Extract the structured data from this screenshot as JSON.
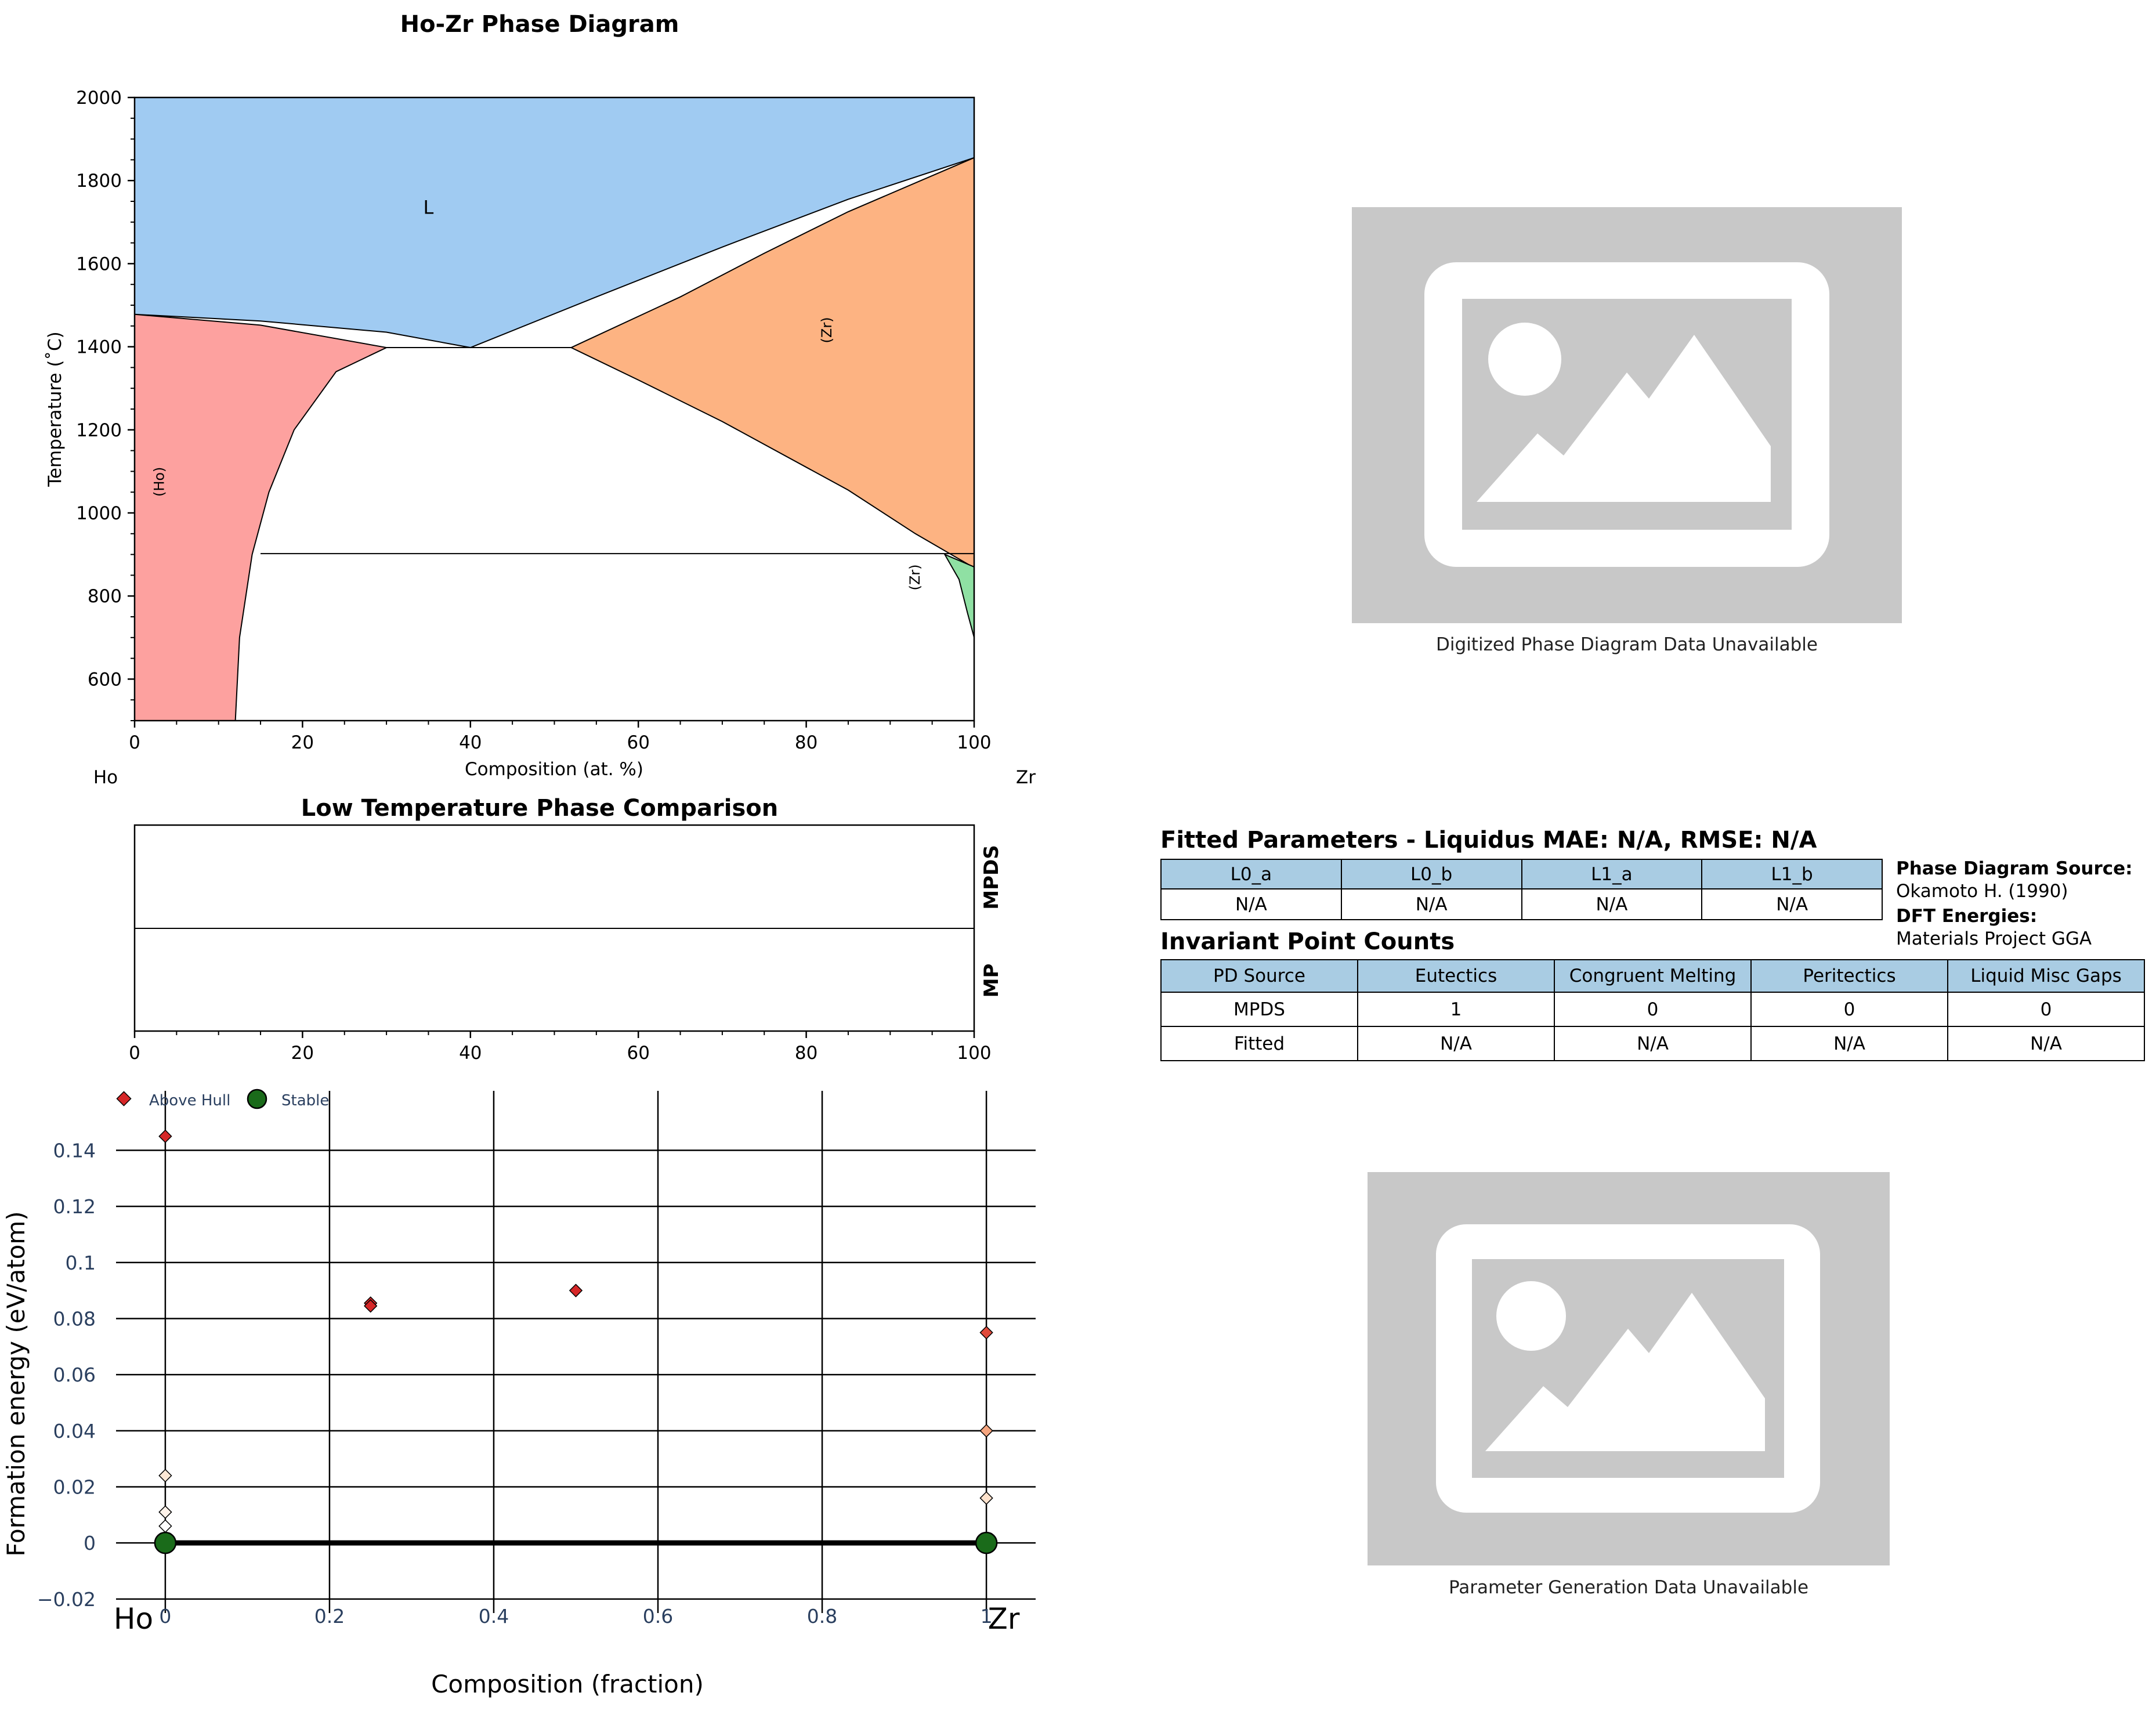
{
  "chart_data": [
    {
      "type": "area",
      "title": "Ho-Zr Phase Diagram",
      "xlabel": "Composition (at. %)",
      "ylabel": "Temperature (˚C)",
      "xlim": [
        0,
        100
      ],
      "ylim": [
        500,
        2000
      ],
      "xticks": [
        "0",
        "20",
        "40",
        "60",
        "80",
        "100"
      ],
      "yticks": [
        "600",
        "800",
        "1000",
        "1200",
        "1400",
        "1600",
        "1800",
        "2000"
      ],
      "element_left": "Ho",
      "element_right": "Zr",
      "phase_labels": [
        {
          "text": "L",
          "x": 35,
          "y": 1720
        },
        {
          "text": "(Zr)",
          "x": 83,
          "y": 1440
        },
        {
          "text": "(Ho)",
          "x": 3.5,
          "y": 1075
        },
        {
          "text": "(Zr)",
          "x": 93.5,
          "y": 845
        }
      ],
      "regions": [
        {
          "phase": "L",
          "color": "#a0cbf2",
          "points": [
            [
              0,
              2000
            ],
            [
              100,
              2000
            ],
            [
              100,
              1855
            ],
            [
              85,
              1755
            ],
            [
              70,
              1640
            ],
            [
              55,
              1520
            ],
            [
              40,
              1398
            ],
            [
              30,
              1435
            ],
            [
              15,
              1462
            ],
            [
              0,
              1478
            ]
          ]
        },
        {
          "phase": "(Ho)",
          "color": "#fda19f",
          "points": [
            [
              0,
              1478
            ],
            [
              15,
              1452
            ],
            [
              30,
              1398
            ],
            [
              24,
              1340
            ],
            [
              19,
              1200
            ],
            [
              16,
              1050
            ],
            [
              14,
              900
            ],
            [
              12.5,
              700
            ],
            [
              12,
              500
            ],
            [
              0,
              500
            ]
          ]
        },
        {
          "phase": "(Zr)",
          "color": "#fdb382",
          "points": [
            [
              52,
              1398
            ],
            [
              65,
              1520
            ],
            [
              75,
              1625
            ],
            [
              85,
              1725
            ],
            [
              100,
              1855
            ],
            [
              100,
              868
            ],
            [
              93,
              950
            ],
            [
              85,
              1055
            ],
            [
              70,
              1220
            ],
            [
              60,
              1320
            ]
          ]
        },
        {
          "phase": "(Zr) low",
          "color": "#8fe0a3",
          "points": [
            [
              96.5,
              900
            ],
            [
              100,
              870
            ],
            [
              100,
              700
            ],
            [
              99.2,
              760
            ],
            [
              98.2,
              840
            ]
          ]
        }
      ],
      "invariant_lines": [
        {
          "x1": 30,
          "x2": 52,
          "y": 1398
        },
        {
          "x1": 15,
          "x2": 100,
          "y": 902
        }
      ]
    },
    {
      "type": "bar",
      "title": "Low Temperature Phase Comparison",
      "rows": [
        "MPDS",
        "MP"
      ],
      "xlim": [
        0,
        100
      ],
      "xticks": [
        "0",
        "20",
        "40",
        "60",
        "80",
        "100"
      ]
    },
    {
      "type": "scatter",
      "xlabel": "Composition (fraction)",
      "ylabel": "Formation energy (eV/atom)",
      "xlim": [
        -0.06,
        1.06
      ],
      "ylim": [
        -0.025,
        0.155
      ],
      "xticks": [
        "0",
        "0.2",
        "0.4",
        "0.6",
        "0.8",
        "1"
      ],
      "yticks": [
        "−0.02",
        "0",
        "0.02",
        "0.04",
        "0.06",
        "0.08",
        "0.1",
        "0.12",
        "0.14"
      ],
      "element_left": "Ho",
      "element_right": "Zr",
      "legend": [
        "Above Hull",
        "Stable"
      ],
      "legend_position": "top-left",
      "hull_line": [
        [
          0,
          0
        ],
        [
          1,
          0
        ]
      ],
      "stable": [
        [
          0,
          0
        ],
        [
          1,
          0
        ]
      ],
      "above_hull": [
        {
          "x": 0,
          "y": 0.145,
          "color": "#d62728"
        },
        {
          "x": 0.25,
          "y": 0.0855,
          "color": "#d62728"
        },
        {
          "x": 0.25,
          "y": 0.0845,
          "color": "#d62728"
        },
        {
          "x": 0.5,
          "y": 0.09,
          "color": "#d62728"
        },
        {
          "x": 1,
          "y": 0.075,
          "color": "#e04a3a"
        },
        {
          "x": 1,
          "y": 0.04,
          "color": "#f5a57f"
        },
        {
          "x": 1,
          "y": 0.016,
          "color": "#fde2cc"
        },
        {
          "x": 0,
          "y": 0.024,
          "color": "#fde8d5"
        },
        {
          "x": 0,
          "y": 0.011,
          "color": "#fff3ea"
        },
        {
          "x": 0,
          "y": 0.006,
          "color": "#ffffff"
        }
      ]
    }
  ],
  "image_top": {
    "caption": "Digitized Phase Diagram Data Unavailable",
    "icon": "image-placeholder-icon"
  },
  "image_bottom": {
    "caption": "Parameter Generation Data Unavailable",
    "icon": "image-placeholder-icon"
  },
  "fitted": {
    "title": "Fitted Parameters - Liquidus MAE: N/A, RMSE: N/A",
    "headers": [
      "L0_a",
      "L0_b",
      "L1_a",
      "L1_b"
    ],
    "values": [
      "N/A",
      "N/A",
      "N/A",
      "N/A"
    ]
  },
  "source": {
    "pd_label": "Phase Diagram Source:",
    "pd_value": "Okamoto H. (1990)",
    "dft_label": "DFT Energies:",
    "dft_value": "Materials Project GGA"
  },
  "invariant": {
    "title": "Invariant Point Counts",
    "headers": [
      "PD Source",
      "Eutectics",
      "Congruent Melting",
      "Peritectics",
      "Liquid Misc Gaps"
    ],
    "rows": [
      [
        "MPDS",
        "1",
        "0",
        "0",
        "0"
      ],
      [
        "Fitted",
        "N/A",
        "N/A",
        "N/A",
        "N/A"
      ]
    ]
  },
  "colors": {
    "header_fill": "#a9cce3",
    "stable_marker": "#1a6b1a",
    "above_hull_marker": "#d62728"
  }
}
